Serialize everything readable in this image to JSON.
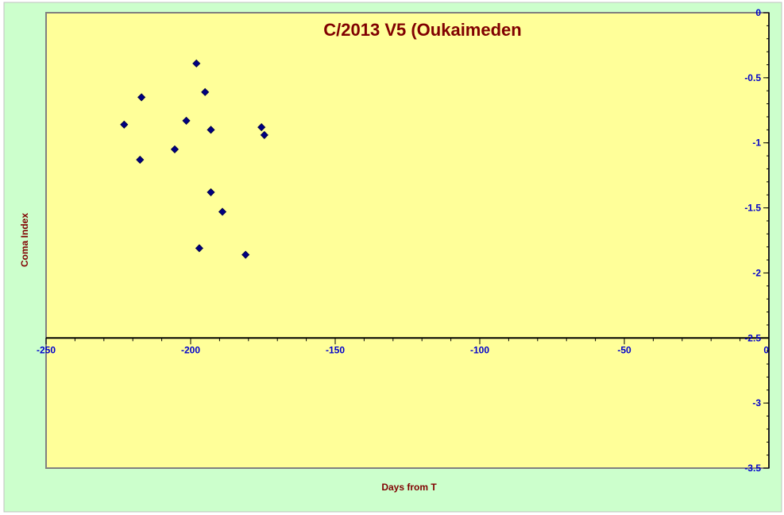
{
  "chart_data": {
    "type": "scatter",
    "title": "C/2013 V5 (Oukaimeden",
    "xlabel": "Days from T",
    "ylabel": "Coma Index",
    "xlim": [
      -250,
      0
    ],
    "ylim": [
      -3.5,
      0
    ],
    "x_ticks": [
      -250,
      -200,
      -150,
      -100,
      -50,
      0
    ],
    "x_tick_labels": [
      "-250",
      "-200",
      "-150",
      "-100",
      "-50",
      "0"
    ],
    "y_ticks": [
      0,
      -0.5,
      -1,
      -1.5,
      -2,
      -2.5,
      -3,
      -3.5
    ],
    "y_tick_labels": [
      "0",
      "-0.5",
      "-1",
      "-1.5",
      "-2",
      "-2.5",
      "-3",
      "-3.5"
    ],
    "x_axis_crosses_at": -2.5,
    "y_axis_position": "right",
    "grid": false,
    "legend": "none",
    "colors": {
      "plot_background": "#ffff99",
      "chart_background": "#ccffcc",
      "marker": "#000080",
      "title": "#800000",
      "tick_labels": "#0000cc"
    },
    "series": [
      {
        "marker": "diamond",
        "points": [
          {
            "x": -223,
            "y": -0.86
          },
          {
            "x": -217,
            "y": -0.65
          },
          {
            "x": -217.5,
            "y": -1.13
          },
          {
            "x": -205.5,
            "y": -1.05
          },
          {
            "x": -201.5,
            "y": -0.83
          },
          {
            "x": -198,
            "y": -0.39
          },
          {
            "x": -197,
            "y": -1.81
          },
          {
            "x": -195,
            "y": -0.61
          },
          {
            "x": -193,
            "y": -0.9
          },
          {
            "x": -193,
            "y": -1.38
          },
          {
            "x": -189,
            "y": -1.53
          },
          {
            "x": -181,
            "y": -1.86
          },
          {
            "x": -175.5,
            "y": -0.88
          },
          {
            "x": -174.5,
            "y": -0.94
          }
        ]
      }
    ]
  }
}
